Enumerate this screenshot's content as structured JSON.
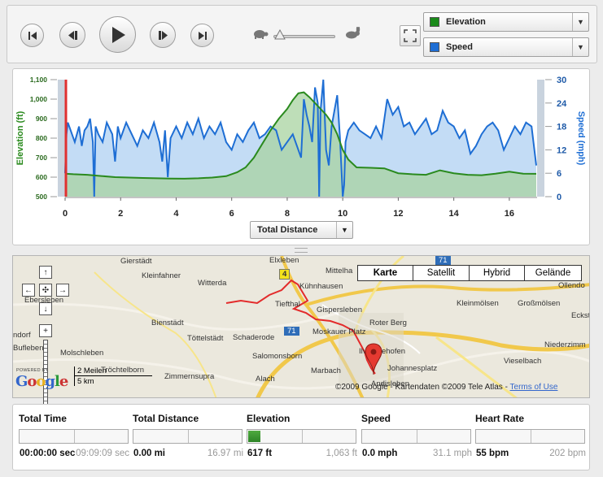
{
  "toolbar": {
    "buttons": [
      "skip-back-icon",
      "step-back-icon",
      "play-icon",
      "step-forward-icon",
      "skip-forward-icon"
    ],
    "speed_slider": {
      "min_icon": "turtle-icon",
      "max_icon": "rabbit-icon",
      "level": 0.05
    },
    "fullscreen_icon": "fullscreen-icon"
  },
  "selectors": [
    {
      "label": "Elevation",
      "color": "#1a8a1a"
    },
    {
      "label": "Speed",
      "color": "#1e6ed4"
    }
  ],
  "chart_data": {
    "type": "area",
    "x_axis": {
      "label": "Total Distance",
      "range": [
        0,
        17
      ],
      "ticks": [
        "0",
        "2",
        "4",
        "6",
        "8",
        "10",
        "12",
        "14",
        "16"
      ]
    },
    "y_left": {
      "label": "Elevation (ft)",
      "range": [
        500,
        1100
      ],
      "ticks": [
        "500",
        "600",
        "700",
        "800",
        "900",
        "1,000",
        "1,100"
      ],
      "color": "#2a8a1e"
    },
    "y_right": {
      "label": "Speed (mph)",
      "range": [
        0,
        30
      ],
      "ticks": [
        "0",
        "6",
        "12",
        "18",
        "24",
        "30"
      ],
      "color": "#1e6ed4"
    },
    "series": [
      {
        "name": "Elevation",
        "axis": "left",
        "x": [
          0,
          0.3,
          0.8,
          1.3,
          1.8,
          2.3,
          2.8,
          3.3,
          3.8,
          4.3,
          4.8,
          5.3,
          5.8,
          6.2,
          6.5,
          6.8,
          7.1,
          7.4,
          7.7,
          8.0,
          8.2,
          8.4,
          8.6,
          8.8,
          9.0,
          9.2,
          9.4,
          9.6,
          9.8,
          10.0,
          10.2,
          10.5,
          11.0,
          11.5,
          12.0,
          12.5,
          13.0,
          13.5,
          14.0,
          14.5,
          15.0,
          15.5,
          16.0,
          16.5,
          16.97
        ],
        "y": [
          618,
          615,
          612,
          606,
          600,
          598,
          596,
          594,
          593,
          592,
          594,
          598,
          605,
          625,
          650,
          700,
          770,
          840,
          900,
          950,
          995,
          1030,
          1035,
          1010,
          980,
          950,
          920,
          880,
          820,
          740,
          690,
          650,
          648,
          645,
          620,
          615,
          612,
          635,
          620,
          612,
          610,
          618,
          628,
          618,
          617
        ]
      },
      {
        "name": "Speed",
        "axis": "right",
        "x": [
          0,
          0.05,
          0.1,
          0.2,
          0.35,
          0.5,
          0.6,
          0.7,
          0.8,
          0.9,
          1.0,
          1.05,
          1.1,
          1.2,
          1.35,
          1.5,
          1.7,
          1.8,
          1.9,
          2.0,
          2.2,
          2.4,
          2.6,
          2.8,
          3.0,
          3.2,
          3.4,
          3.5,
          3.6,
          3.7,
          3.8,
          4.0,
          4.2,
          4.4,
          4.6,
          4.8,
          5.0,
          5.2,
          5.4,
          5.6,
          5.8,
          6.0,
          6.2,
          6.4,
          6.6,
          6.8,
          7.0,
          7.2,
          7.4,
          7.6,
          7.8,
          8.0,
          8.2,
          8.4,
          8.5,
          8.6,
          8.7,
          8.8,
          8.9,
          9.0,
          9.1,
          9.15,
          9.2,
          9.3,
          9.4,
          9.5,
          9.6,
          9.7,
          9.8,
          9.9,
          10.0,
          10.05,
          10.1,
          10.2,
          10.4,
          10.6,
          10.8,
          11.0,
          11.2,
          11.4,
          11.6,
          11.8,
          12.0,
          12.2,
          12.4,
          12.6,
          12.8,
          13.0,
          13.2,
          13.4,
          13.6,
          13.8,
          14.0,
          14.2,
          14.4,
          14.6,
          14.8,
          15.0,
          15.2,
          15.4,
          15.6,
          15.8,
          16.0,
          16.2,
          16.4,
          16.6,
          16.8,
          16.97
        ],
        "y": [
          6,
          16,
          19,
          17,
          14,
          18,
          13,
          17,
          18,
          20,
          14,
          0,
          18,
          16,
          14,
          19,
          16,
          9,
          18,
          15,
          19,
          16,
          13,
          17,
          15,
          19,
          14,
          9,
          17,
          5,
          15,
          18,
          15,
          19,
          16,
          20,
          15,
          18,
          16,
          19,
          14,
          12,
          16,
          14,
          17,
          19,
          15,
          16,
          18,
          17,
          12,
          14,
          16,
          12,
          10,
          25,
          21,
          18,
          14,
          28,
          24,
          0,
          22,
          30,
          12,
          8,
          18,
          22,
          26,
          15,
          0,
          3,
          14,
          17,
          19,
          17,
          16,
          15,
          18,
          15,
          25,
          21,
          23,
          18,
          19,
          16,
          18,
          20,
          16,
          17,
          22,
          19,
          18,
          15,
          17,
          11,
          13,
          16,
          18,
          19,
          17,
          12,
          15,
          18,
          16,
          19,
          18,
          8
        ]
      }
    ]
  },
  "distance_selector": {
    "label": "Total Distance"
  },
  "map": {
    "tabs": [
      {
        "label": "Karte",
        "active": true
      },
      {
        "label": "Satellit",
        "active": false
      },
      {
        "label": "Hybrid",
        "active": false
      },
      {
        "label": "Gelände",
        "active": false
      }
    ],
    "places": [
      {
        "name": "Gierstädt"
      },
      {
        "name": "Kleinfahner"
      },
      {
        "name": "Witterda"
      },
      {
        "name": "Elxleben"
      },
      {
        "name": "Mittelha"
      },
      {
        "name": "Kühnhausen"
      },
      {
        "name": "Tiefthal"
      },
      {
        "name": "Gispersleben"
      },
      {
        "name": "Kleinmölsen"
      },
      {
        "name": "Großmölsen"
      },
      {
        "name": "Ollendo"
      },
      {
        "name": "Eckstedt"
      },
      {
        "name": "Bienstädt"
      },
      {
        "name": "Töttelstädt"
      },
      {
        "name": "Schaderode"
      },
      {
        "name": "Moskauer Platz"
      },
      {
        "name": "Roter Berg"
      },
      {
        "name": "Niederzimm"
      },
      {
        "name": "Bufleben"
      },
      {
        "name": "Molschleben"
      },
      {
        "name": "Salomonsborn"
      },
      {
        "name": "Ilversgehofen"
      },
      {
        "name": "Johannesplatz"
      },
      {
        "name": "Vieselbach"
      },
      {
        "name": "Tröchtelborn"
      },
      {
        "name": "Zimmernsupra"
      },
      {
        "name": "Alach"
      },
      {
        "name": "Marbach"
      },
      {
        "name": "Andisleben"
      },
      {
        "name": "Ebersleben"
      },
      {
        "name": "ndorf"
      }
    ],
    "road_badges": [
      {
        "label": "4"
      },
      {
        "label": "71"
      },
      {
        "label": "71"
      }
    ],
    "scale_miles": "2 Meilen",
    "scale_km": "5 km",
    "powered_by": "POWERED BY",
    "logo": "Google",
    "copyright": "©2009 Google - Kartendaten ©2009 Tele Atlas -",
    "terms": "Terms of Use"
  },
  "stats": [
    {
      "label": "Total Time",
      "current": "00:00:00 sec",
      "max": "09:09:09 sec",
      "fill": 0
    },
    {
      "label": "Total Distance",
      "current": "0.00 mi",
      "max": "16.97 mi",
      "fill": 0
    },
    {
      "label": "Elevation",
      "current": "617 ft",
      "max": "1,063 ft",
      "fill": 0.11
    },
    {
      "label": "Speed",
      "current": "0.0 mph",
      "max": "31.1 mph",
      "fill": 0
    },
    {
      "label": "Heart Rate",
      "current": "55 bpm",
      "max": "202 bpm",
      "fill": 0
    }
  ]
}
